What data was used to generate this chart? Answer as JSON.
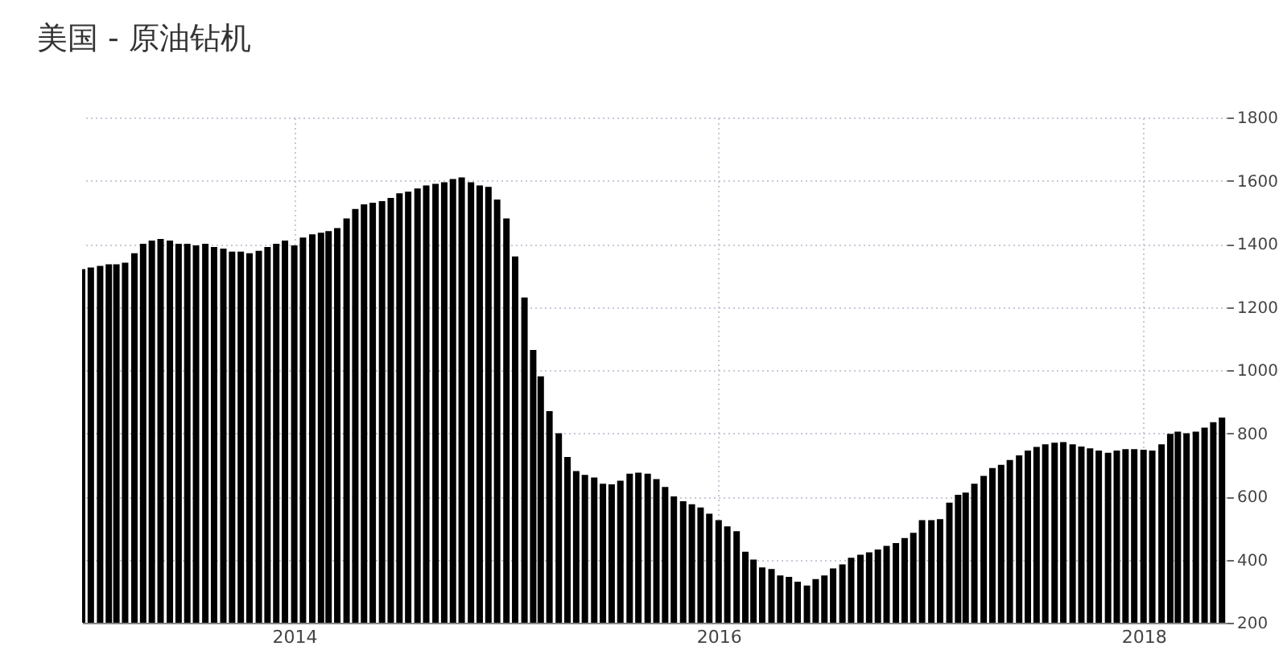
{
  "chart_data": {
    "type": "bar",
    "title": "美国 - 原油钻机",
    "color": "#000000",
    "x": [
      "2013-01-01",
      "2013-01-16",
      "2013-02-01",
      "2013-02-16",
      "2013-03-01",
      "2013-03-16",
      "2013-04-01",
      "2013-04-16",
      "2013-05-01",
      "2013-05-16",
      "2013-06-01",
      "2013-06-16",
      "2013-07-01",
      "2013-07-16",
      "2013-08-01",
      "2013-08-16",
      "2013-09-01",
      "2013-09-16",
      "2013-10-01",
      "2013-10-16",
      "2013-11-01",
      "2013-11-16",
      "2013-12-01",
      "2013-12-16",
      "2014-01-01",
      "2014-01-16",
      "2014-02-01",
      "2014-02-16",
      "2014-03-01",
      "2014-03-16",
      "2014-04-01",
      "2014-04-16",
      "2014-05-01",
      "2014-05-16",
      "2014-06-01",
      "2014-06-16",
      "2014-07-01",
      "2014-07-16",
      "2014-08-01",
      "2014-08-16",
      "2014-09-01",
      "2014-09-16",
      "2014-10-01",
      "2014-10-16",
      "2014-11-01",
      "2014-11-16",
      "2014-12-01",
      "2014-12-16",
      "2015-01-01",
      "2015-01-16",
      "2015-02-01",
      "2015-02-16",
      "2015-03-01",
      "2015-03-16",
      "2015-04-01",
      "2015-04-16",
      "2015-05-01",
      "2015-05-16",
      "2015-06-01",
      "2015-06-16",
      "2015-07-01",
      "2015-07-16",
      "2015-08-01",
      "2015-08-16",
      "2015-09-01",
      "2015-09-16",
      "2015-10-01",
      "2015-10-16",
      "2015-11-01",
      "2015-11-16",
      "2015-12-01",
      "2015-12-16",
      "2016-01-01",
      "2016-01-16",
      "2016-02-01",
      "2016-02-16",
      "2016-03-01",
      "2016-03-16",
      "2016-04-01",
      "2016-04-16",
      "2016-05-01",
      "2016-05-16",
      "2016-06-01",
      "2016-06-16",
      "2016-07-01",
      "2016-07-16",
      "2016-08-01",
      "2016-08-16",
      "2016-09-01",
      "2016-09-16",
      "2016-10-01",
      "2016-10-16",
      "2016-11-01",
      "2016-11-16",
      "2016-12-01",
      "2016-12-16",
      "2017-01-01",
      "2017-01-16",
      "2017-02-01",
      "2017-02-16",
      "2017-03-01",
      "2017-03-16",
      "2017-04-01",
      "2017-04-16",
      "2017-05-01",
      "2017-05-16",
      "2017-06-01",
      "2017-06-16",
      "2017-07-01",
      "2017-07-16",
      "2017-08-01",
      "2017-08-16",
      "2017-09-01",
      "2017-09-16",
      "2017-10-01",
      "2017-10-16",
      "2017-11-01",
      "2017-11-16",
      "2017-12-01",
      "2017-12-16",
      "2018-01-01",
      "2018-01-16",
      "2018-02-01",
      "2018-02-16",
      "2018-03-01",
      "2018-03-16",
      "2018-04-01",
      "2018-04-16",
      "2018-05-01",
      "2018-05-16"
    ],
    "values": [
      1320,
      1325,
      1330,
      1335,
      1335,
      1340,
      1370,
      1400,
      1410,
      1415,
      1410,
      1400,
      1400,
      1395,
      1400,
      1390,
      1385,
      1375,
      1375,
      1370,
      1378,
      1390,
      1400,
      1410,
      1395,
      1420,
      1430,
      1435,
      1440,
      1450,
      1480,
      1510,
      1525,
      1530,
      1535,
      1545,
      1560,
      1565,
      1575,
      1585,
      1590,
      1595,
      1605,
      1610,
      1595,
      1585,
      1580,
      1540,
      1480,
      1360,
      1230,
      1064,
      980,
      870,
      800,
      725,
      680,
      668,
      660,
      640,
      638,
      650,
      672,
      675,
      672,
      655,
      630,
      600,
      585,
      575,
      565,
      545,
      525,
      505,
      490,
      425,
      400,
      375,
      370,
      350,
      345,
      330,
      318,
      338,
      350,
      372,
      385,
      406,
      415,
      423,
      432,
      443,
      452,
      468,
      485,
      525,
      525,
      528,
      580,
      605,
      612,
      640,
      665,
      690,
      700,
      715,
      730,
      745,
      757,
      765,
      770,
      772,
      765,
      758,
      752,
      745,
      738,
      745,
      750,
      750,
      748,
      745,
      765,
      798,
      805,
      800,
      805,
      818,
      835,
      850
    ],
    "xlim": [
      "2013-01-01",
      "2018-05-24"
    ],
    "xticks": [
      {
        "value": "2014-01-01",
        "label": "2014"
      },
      {
        "value": "2016-01-01",
        "label": "2016"
      },
      {
        "value": "2018-01-01",
        "label": "2018"
      }
    ],
    "ylim": [
      200,
      1800
    ],
    "yticks": [
      200,
      400,
      600,
      800,
      1000,
      1200,
      1400,
      1600,
      1800
    ],
    "grid": true
  }
}
